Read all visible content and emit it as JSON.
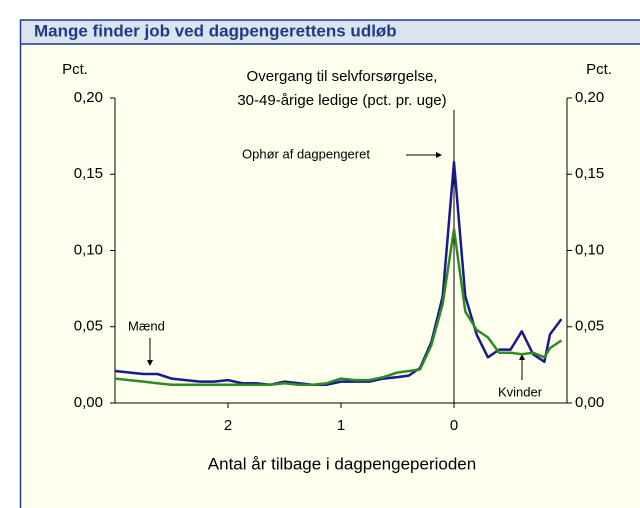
{
  "chart_data": {
    "type": "line",
    "title": "Mange finder job ved dagpengerettens udløb",
    "subtitle": [
      "Overgang til selvforsørgelse,",
      "30-49-årige ledige (pct. pr. uge)"
    ],
    "ylabel": "Pct.",
    "y2label": "Pct.",
    "xlabel": "Antal år tilbage i dagpengeperioden",
    "annotations": [
      "Ophør af dagpengeret"
    ],
    "xlim": [
      3,
      -1
    ],
    "xticks": [
      2,
      1,
      0
    ],
    "ylim": [
      0,
      0.2
    ],
    "yticks": [
      {
        "value": 0,
        "label": "0,00"
      },
      {
        "value": 0.05,
        "label": "0,05"
      },
      {
        "value": 0.1,
        "label": "0,10"
      },
      {
        "value": 0.15,
        "label": "0,15"
      },
      {
        "value": 0.2,
        "label": "0,20"
      }
    ],
    "y2lim": [
      0,
      0.2
    ],
    "y2ticks": [
      {
        "value": 0,
        "label": "0,00"
      },
      {
        "value": 0.05,
        "label": "0,05"
      },
      {
        "value": 0.1,
        "label": "0,10"
      },
      {
        "value": 0.15,
        "label": "0,15"
      },
      {
        "value": 0.2,
        "label": "0,20"
      }
    ],
    "x": [
      3,
      2.875,
      2.75,
      2.625,
      2.5,
      2.375,
      2.25,
      2.125,
      2,
      1.875,
      1.75,
      1.625,
      1.5,
      1.375,
      1.25,
      1.125,
      1,
      0.875,
      0.75,
      0.625,
      0.5,
      0.4,
      0.3,
      0.2,
      0.1,
      0,
      -0.1,
      -0.2,
      -0.3,
      -0.4,
      -0.5,
      -0.6,
      -0.7,
      -0.8,
      -0.85,
      -0.95
    ],
    "series": [
      {
        "name": "Mænd",
        "color": "#1a1a8c",
        "values": [
          0.021,
          0.02,
          0.019,
          0.019,
          0.016,
          0.015,
          0.014,
          0.014,
          0.015,
          0.013,
          0.013,
          0.012,
          0.014,
          0.013,
          0.012,
          0.012,
          0.014,
          0.014,
          0.014,
          0.016,
          0.017,
          0.018,
          0.023,
          0.04,
          0.07,
          0.158,
          0.07,
          0.045,
          0.03,
          0.035,
          0.035,
          0.047,
          0.032,
          0.027,
          0.045,
          0.055
        ]
      },
      {
        "name": "Kvinder",
        "color": "#2e8b22",
        "values": [
          0.016,
          0.015,
          0.014,
          0.013,
          0.012,
          0.012,
          0.012,
          0.012,
          0.012,
          0.012,
          0.012,
          0.012,
          0.013,
          0.012,
          0.012,
          0.013,
          0.016,
          0.015,
          0.015,
          0.017,
          0.02,
          0.021,
          0.022,
          0.038,
          0.065,
          0.114,
          0.06,
          0.048,
          0.043,
          0.033,
          0.033,
          0.032,
          0.033,
          0.03,
          0.036,
          0.041
        ]
      }
    ]
  }
}
